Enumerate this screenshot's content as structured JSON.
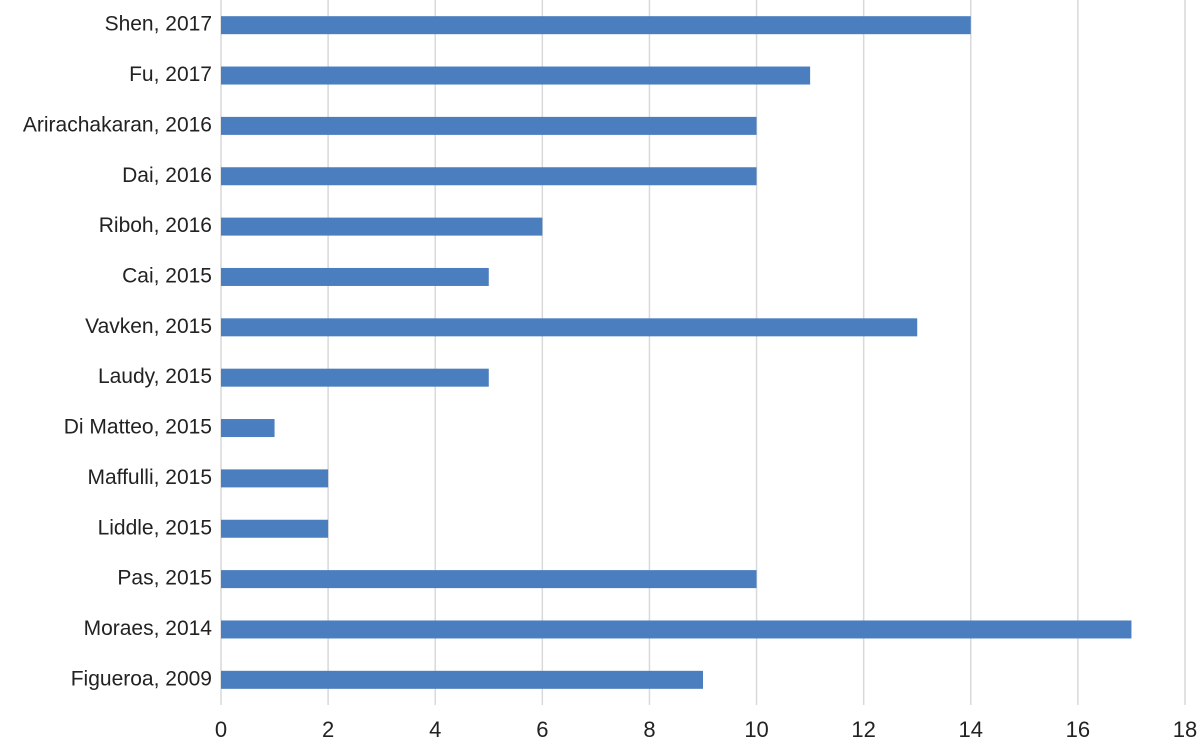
{
  "chart_data": {
    "type": "bar",
    "orientation": "horizontal",
    "categories": [
      "Shen, 2017",
      "Fu, 2017",
      "Arirachakaran, 2016",
      "Dai, 2016",
      "Riboh, 2016",
      "Cai, 2015",
      "Vavken, 2015",
      "Laudy, 2015",
      "Di Matteo, 2015",
      "Maffulli, 2015",
      "Liddle, 2015",
      "Pas, 2015",
      "Moraes, 2014",
      "Figueroa, 2009"
    ],
    "values": [
      14,
      11,
      10,
      10,
      6,
      5,
      13,
      5,
      1,
      2,
      2,
      10,
      17,
      9
    ],
    "color": "#4a7ebf",
    "xlim": [
      0,
      18
    ],
    "xticks": [
      0,
      2,
      4,
      6,
      8,
      10,
      12,
      14,
      16,
      18
    ],
    "grid": true
  }
}
